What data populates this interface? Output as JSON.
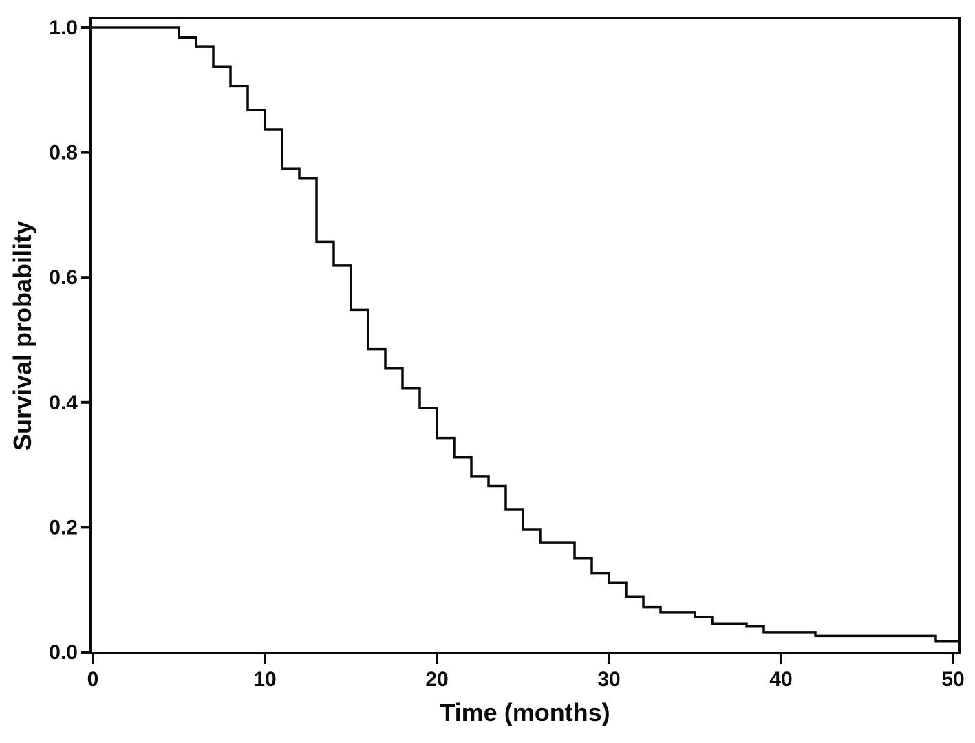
{
  "figure": {
    "background_color": "#ffffff",
    "frame_color": "#0a0a0a",
    "curve_color": "#0a0a0a"
  },
  "chart_data": {
    "type": "line",
    "subtype": "kaplan-meier-step",
    "title": "",
    "xlabel": "Time (months)",
    "ylabel": "Survival probability",
    "xlim": [
      0,
      50.4
    ],
    "ylim": [
      0.0,
      1.0
    ],
    "grid": false,
    "legend": null,
    "x_ticks": {
      "values": [
        0,
        10,
        20,
        30,
        40,
        50
      ],
      "labels": [
        "0",
        "10",
        "20",
        "30",
        "40",
        "50"
      ]
    },
    "y_ticks": {
      "values": [
        0.0,
        0.2,
        0.4,
        0.6,
        0.8,
        1.0
      ],
      "labels": [
        "0.0",
        "0.2",
        "0.4",
        "0.6",
        "0.8",
        "1.0"
      ]
    },
    "series": [
      {
        "name": "survival-curve",
        "draw_style": "steps-post",
        "extend_to_x": 50.4,
        "points": [
          [
            0,
            1.0
          ],
          [
            5,
            0.984
          ],
          [
            6,
            0.969
          ],
          [
            7,
            0.937
          ],
          [
            8,
            0.906
          ],
          [
            9,
            0.868
          ],
          [
            10,
            0.837
          ],
          [
            11,
            0.774
          ],
          [
            12,
            0.759
          ],
          [
            13,
            0.657
          ],
          [
            14,
            0.619
          ],
          [
            15,
            0.548
          ],
          [
            16,
            0.485
          ],
          [
            17,
            0.454
          ],
          [
            18,
            0.422
          ],
          [
            19,
            0.391
          ],
          [
            20,
            0.343
          ],
          [
            21,
            0.312
          ],
          [
            22,
            0.281
          ],
          [
            23,
            0.266
          ],
          [
            24,
            0.228
          ],
          [
            25,
            0.196
          ],
          [
            26,
            0.175
          ],
          [
            28,
            0.15
          ],
          [
            29,
            0.126
          ],
          [
            30,
            0.111
          ],
          [
            31,
            0.089
          ],
          [
            32,
            0.072
          ],
          [
            33,
            0.064
          ],
          [
            35,
            0.056
          ],
          [
            36,
            0.046
          ],
          [
            38,
            0.041
          ],
          [
            39,
            0.032
          ],
          [
            42,
            0.026
          ],
          [
            49,
            0.018
          ]
        ]
      }
    ]
  }
}
